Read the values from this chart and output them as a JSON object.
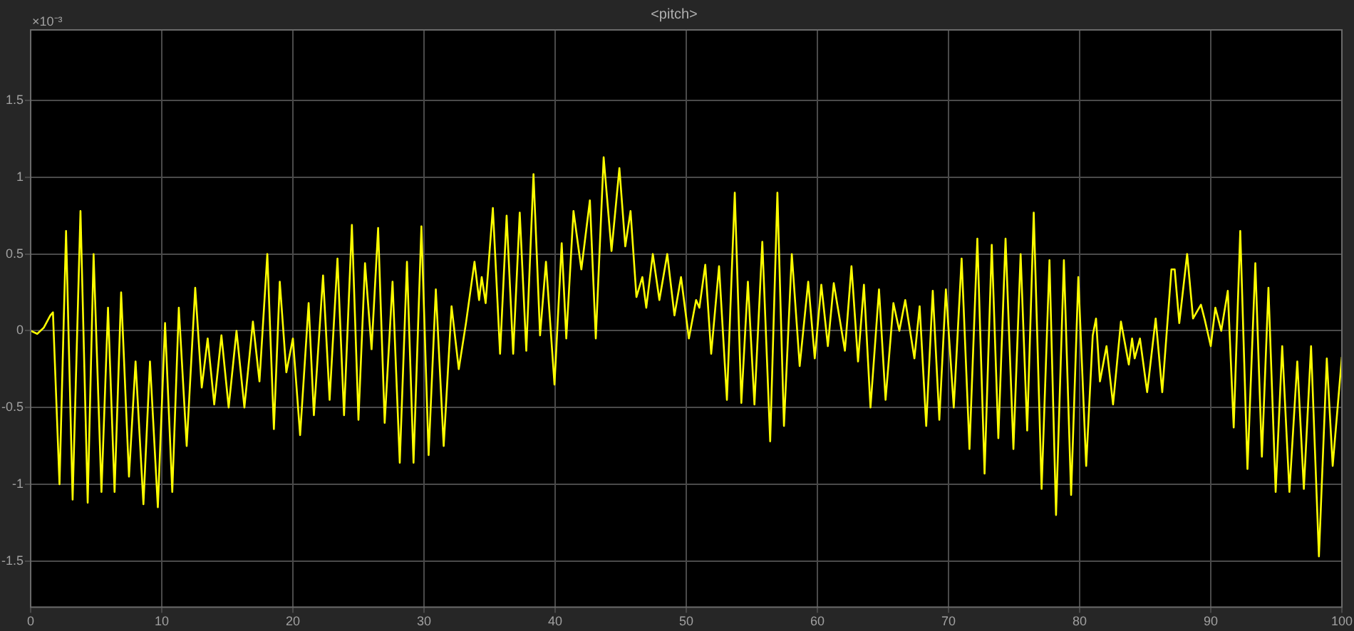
{
  "chart_data": {
    "type": "line",
    "title": "<pitch>",
    "annotations": [
      "×10⁻³"
    ],
    "xlim": [
      0,
      100
    ],
    "xticks": [
      0,
      10,
      20,
      30,
      40,
      50,
      60,
      70,
      80,
      90,
      100
    ],
    "ylim": [
      -1.8,
      1.96
    ],
    "yticks": [
      -1.5,
      -1,
      -0.5,
      0,
      0.5,
      1,
      1.5
    ],
    "grid": true,
    "legend": false,
    "marker": "none",
    "line_style": "solid",
    "series": [
      {
        "color": "#ffff00",
        "x": [
          0,
          0.5,
          1,
          1.5,
          1.7,
          2.2,
          2.7,
          3.2,
          3.8,
          4.35,
          4.8,
          5.4,
          5.9,
          6.4,
          6.9,
          7.5,
          8.0,
          8.6,
          9.1,
          9.7,
          10.25,
          10.8,
          11.3,
          11.9,
          12.55,
          13.05,
          13.5,
          14.0,
          14.55,
          15.1,
          15.7,
          16.3,
          16.95,
          17.45,
          18.05,
          18.55,
          19.0,
          19.5,
          20.0,
          20.55,
          21.2,
          21.6,
          22.3,
          22.8,
          23.4,
          23.9,
          24.5,
          25.0,
          25.5,
          26.0,
          26.5,
          27.0,
          27.6,
          28.15,
          28.7,
          29.2,
          29.8,
          30.35,
          30.9,
          31.5,
          32.1,
          32.65,
          33.2,
          33.85,
          34.2,
          34.4,
          34.7,
          35.25,
          35.8,
          36.3,
          36.8,
          37.3,
          37.8,
          38.35,
          38.85,
          39.3,
          39.95,
          40.5,
          40.85,
          41.4,
          42.0,
          42.65,
          43.1,
          43.7,
          44.3,
          44.9,
          45.35,
          45.75,
          46.2,
          46.65,
          46.95,
          47.45,
          47.95,
          48.55,
          49.1,
          49.6,
          50.2,
          50.75,
          51.0,
          51.45,
          51.9,
          52.5,
          53.1,
          53.7,
          54.2,
          54.7,
          55.2,
          55.8,
          56.4,
          56.95,
          57.45,
          58.05,
          58.65,
          59.3,
          59.8,
          60.3,
          60.8,
          61.25,
          62.1,
          62.6,
          63.1,
          63.55,
          64.05,
          64.7,
          65.2,
          65.8,
          66.25,
          66.7,
          67.4,
          67.8,
          68.3,
          68.8,
          69.3,
          69.8,
          70.4,
          71.0,
          71.6,
          72.2,
          72.75,
          73.3,
          73.8,
          74.35,
          74.95,
          75.5,
          76.0,
          76.5,
          77.1,
          77.7,
          78.2,
          78.8,
          79.35,
          79.9,
          80.5,
          81.0,
          81.25,
          81.55,
          82.05,
          82.55,
          83.15,
          83.75,
          84.0,
          84.2,
          84.6,
          85.15,
          85.8,
          86.3,
          87.0,
          87.25,
          87.6,
          88.2,
          88.65,
          89.25,
          89.55,
          90.0,
          90.35,
          90.8,
          91.3,
          91.75,
          92.25,
          92.8,
          93.4,
          93.9,
          94.4,
          94.95,
          95.45,
          96.0,
          96.6,
          97.1,
          97.65,
          98.25,
          98.85,
          99.3,
          100
        ],
        "values": [
          0,
          -0.02,
          0.02,
          0.1,
          0.12,
          -1.0,
          0.65,
          -1.1,
          0.78,
          -1.12,
          0.5,
          -1.05,
          0.15,
          -1.05,
          0.25,
          -0.95,
          -0.2,
          -1.13,
          -0.2,
          -1.15,
          0.05,
          -1.05,
          0.15,
          -0.75,
          0.28,
          -0.37,
          -0.05,
          -0.48,
          -0.03,
          -0.5,
          0,
          -0.5,
          0.06,
          -0.33,
          0.5,
          -0.64,
          0.32,
          -0.27,
          -0.05,
          -0.68,
          0.18,
          -0.55,
          0.36,
          -0.45,
          0.47,
          -0.55,
          0.69,
          -0.58,
          0.44,
          -0.12,
          0.67,
          -0.6,
          0.32,
          -0.86,
          0.45,
          -0.86,
          0.68,
          -0.81,
          0.27,
          -0.75,
          0.16,
          -0.25,
          0.05,
          0.45,
          0.2,
          0.35,
          0.18,
          0.8,
          -0.15,
          0.75,
          -0.15,
          0.77,
          -0.13,
          1.02,
          -0.03,
          0.45,
          -0.35,
          0.57,
          -0.05,
          0.78,
          0.4,
          0.85,
          -0.05,
          1.13,
          0.52,
          1.06,
          0.55,
          0.78,
          0.22,
          0.35,
          0.15,
          0.5,
          0.2,
          0.5,
          0.1,
          0.35,
          -0.05,
          0.2,
          0.15,
          0.43,
          -0.15,
          0.42,
          -0.45,
          0.9,
          -0.47,
          0.32,
          -0.48,
          0.58,
          -0.72,
          0.9,
          -0.62,
          0.5,
          -0.23,
          0.32,
          -0.18,
          0.3,
          -0.1,
          0.31,
          -0.13,
          0.42,
          -0.2,
          0.3,
          -0.5,
          0.27,
          -0.45,
          0.18,
          0,
          0.2,
          -0.18,
          0.16,
          -0.62,
          0.26,
          -0.58,
          0.27,
          -0.5,
          0.47,
          -0.77,
          0.6,
          -0.93,
          0.56,
          -0.7,
          0.6,
          -0.77,
          0.5,
          -0.65,
          0.77,
          -1.03,
          0.46,
          -1.2,
          0.46,
          -1.07,
          0.35,
          -0.88,
          -0.03,
          0.08,
          -0.33,
          -0.1,
          -0.48,
          0.06,
          -0.22,
          -0.05,
          -0.18,
          -0.05,
          -0.4,
          0.08,
          -0.4,
          0.4,
          0.4,
          0.05,
          0.5,
          0.08,
          0.17,
          0.07,
          -0.1,
          0.15,
          0,
          0.26,
          -0.63,
          0.65,
          -0.9,
          0.44,
          -0.82,
          0.28,
          -1.05,
          -0.1,
          -1.05,
          -0.2,
          -1.03,
          -0.1,
          -1.47,
          -0.18,
          -0.88,
          -0.17
        ]
      }
    ]
  }
}
